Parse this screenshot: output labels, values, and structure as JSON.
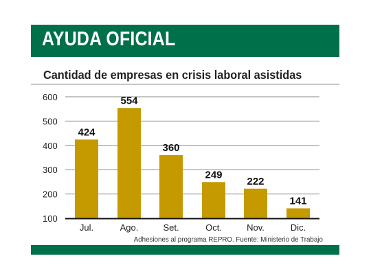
{
  "header": {
    "title": "AYUDA OFICIAL"
  },
  "colors": {
    "brand_green": "#00704a",
    "bar_gold": "#c49a00",
    "gridline": "#8a8a8a"
  },
  "chart_data": {
    "type": "bar",
    "title": "Cantidad de empresas en crisis laboral asistidas",
    "categories": [
      "Jul.",
      "Ago.",
      "Set.",
      "Oct.",
      "Nov.",
      "Dic."
    ],
    "values": [
      424,
      554,
      360,
      249,
      222,
      141
    ],
    "data_labels": [
      "424",
      "554",
      "360",
      "249",
      "222",
      "141"
    ],
    "ylim": [
      100,
      600
    ],
    "yticks": [
      100,
      200,
      300,
      400,
      500,
      600
    ],
    "ytick_labels": [
      "100",
      "200",
      "300",
      "400",
      "500",
      "600"
    ],
    "grid": true,
    "xlabel": "",
    "ylabel": ""
  },
  "footer": {
    "source": "Adhesiones al programa REPRO. Fuente: Ministerio de Trabajo"
  }
}
